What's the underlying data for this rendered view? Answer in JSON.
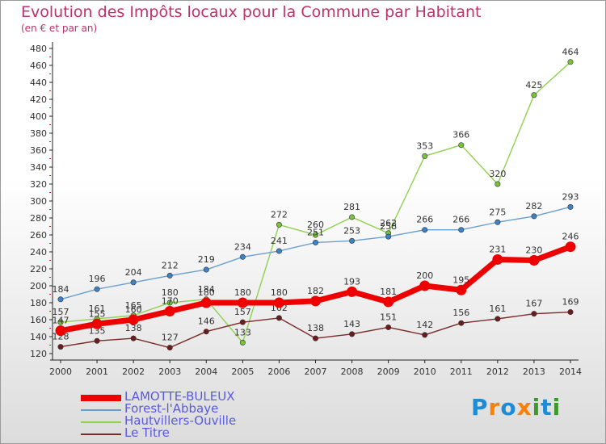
{
  "title": "Evolution des Impôts locaux pour la Commune par Habitant",
  "subtitle": "(en € et par an)",
  "logo": {
    "text": "Proxiti",
    "letters": [
      "P",
      "r",
      "o",
      "x",
      "i",
      "t",
      "i"
    ],
    "colors": [
      "#1e8bd6",
      "#ff7f00",
      "#1e8bd6",
      "#ff7f00",
      "#3a9a2a",
      "#1e8bd6",
      "#3a9a2a"
    ]
  },
  "chart_data": {
    "type": "line",
    "x": [
      "2000",
      "2001",
      "2002",
      "2003",
      "2004",
      "2005",
      "2006",
      "2007",
      "2008",
      "2009",
      "2010",
      "2011",
      "2012",
      "2013",
      "2014"
    ],
    "ylim": [
      120,
      480
    ],
    "yticks": [
      "120",
      "140",
      "160",
      "180",
      "200",
      "220",
      "240",
      "260",
      "280",
      "300",
      "320",
      "340",
      "360",
      "380",
      "400",
      "420",
      "440",
      "460",
      "480"
    ],
    "grid": false,
    "legend_position": "bottom-left",
    "series": [
      {
        "name": "Hautvillers-Ouville",
        "color": "#8fd14f",
        "marker": "#79c23a",
        "width": 1.4,
        "values": [
          157,
          161,
          165,
          180,
          184,
          133,
          272,
          260,
          281,
          262,
          353,
          366,
          320,
          425,
          464
        ]
      },
      {
        "name": "Forest-l'Abbaye",
        "color": "#6a9fd0",
        "marker": "#3e82c6",
        "width": 1.4,
        "values": [
          184,
          196,
          204,
          212,
          219,
          234,
          241,
          251,
          253,
          258,
          266,
          266,
          275,
          282,
          293
        ]
      },
      {
        "name": "Le Titre",
        "color": "#7a2a2a",
        "marker": "#6b1d1d",
        "width": 1.4,
        "values": [
          128,
          135,
          138,
          127,
          146,
          157,
          162,
          138,
          143,
          151,
          142,
          156,
          161,
          167,
          169
        ]
      },
      {
        "name": "LAMOTTE-BULEUX",
        "color": "#ee0000",
        "marker": "#ee0000",
        "width": 7,
        "values": [
          147,
          155,
          160,
          170,
          180,
          180,
          180,
          182,
          193,
          181,
          200,
          195,
          231,
          230,
          246
        ]
      }
    ],
    "legend_order": [
      "LAMOTTE-BULEUX",
      "Forest-l'Abbaye",
      "Hautvillers-Ouville",
      "Le Titre"
    ]
  }
}
